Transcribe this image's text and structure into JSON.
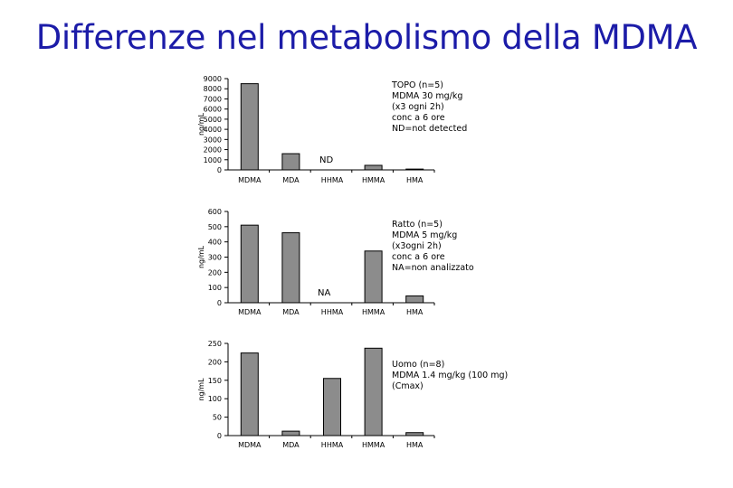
{
  "title": "Differenze nel metabolismo della MDMA",
  "colors": {
    "title": "#1c1ca8",
    "bar_fill": "#8c8c8c",
    "bar_stroke": "#000000"
  },
  "charts": [
    {
      "ylabel": "ng/mL",
      "notes": [
        "TOPO (n=5)",
        "MDMA 30 mg/kg",
        "(x3 ogni 2h)",
        "conc a 6 ore",
        "ND=not detected"
      ],
      "flag": "ND"
    },
    {
      "ylabel": "ng/mL",
      "notes": [
        "Ratto (n=5)",
        "MDMA 5 mg/kg",
        "(x3ogni 2h)",
        "conc a 6 ore",
        "NA=non analizzato"
      ],
      "flag": "NA"
    },
    {
      "ylabel": "ng/mL",
      "notes": [
        "Uomo (n=8)",
        "MDMA 1.4 mg/kg (100 mg)",
        "(Cmax)"
      ],
      "flag": ""
    }
  ],
  "chart_data": [
    {
      "type": "bar",
      "categories": [
        "MDMA",
        "MDA",
        "HHMA",
        "HMMA",
        "HMA"
      ],
      "values": [
        8500,
        1600,
        0,
        450,
        80
      ],
      "ylabel": "ng/mL",
      "ylim": [
        0,
        9000
      ],
      "yticks": [
        0,
        1000,
        2000,
        3000,
        4000,
        5000,
        6000,
        7000,
        8000,
        9000
      ],
      "annotations": [
        "ND"
      ]
    },
    {
      "type": "bar",
      "categories": [
        "MDMA",
        "MDA",
        "HHMA",
        "HMMA",
        "HMA"
      ],
      "values": [
        510,
        460,
        0,
        340,
        45
      ],
      "ylabel": "ng/mL",
      "ylim": [
        0,
        600
      ],
      "yticks": [
        0,
        100,
        200,
        300,
        400,
        500,
        600
      ],
      "annotations": [
        "NA"
      ]
    },
    {
      "type": "bar",
      "categories": [
        "MDMA",
        "MDA",
        "HHMA",
        "HMMA",
        "HMA"
      ],
      "values": [
        224,
        12,
        155,
        237,
        8
      ],
      "ylabel": "ng/mL",
      "ylim": [
        0,
        250
      ],
      "yticks": [
        0,
        50,
        100,
        150,
        200,
        250
      ],
      "annotations": []
    }
  ]
}
